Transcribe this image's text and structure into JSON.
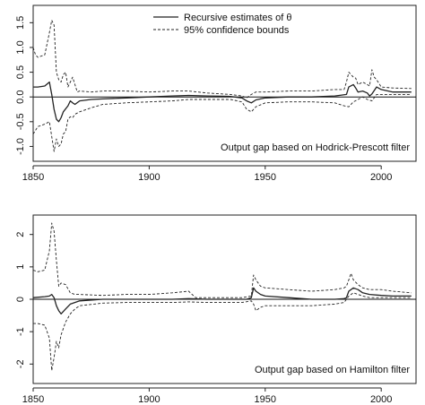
{
  "colors": {
    "line": "#222222",
    "frame": "#222222",
    "zero_line": "#111111",
    "background": "#ffffff"
  },
  "chart_data": [
    {
      "type": "line",
      "title": "",
      "xlabel": "",
      "ylabel": "",
      "annotation": "Output gap based on Hodrick-Prescott filter",
      "xlim": [
        1850,
        2015
      ],
      "ylim": [
        -1.3,
        1.85
      ],
      "x_ticks": [
        1850,
        1900,
        1950,
        2000
      ],
      "y_ticks": [
        -1.0,
        -0.5,
        0.0,
        0.5,
        1.0,
        1.5
      ],
      "y_tick_labels": [
        "-1.0",
        "-0.5",
        "0.0",
        "0.5",
        "1.0",
        "1.5"
      ],
      "hline": 0.0,
      "grid": false,
      "legend_position": "top-center",
      "legend": [
        {
          "label": "Recursive estimates of θ",
          "style": "solid"
        },
        {
          "label": "95% confidence bounds",
          "style": "dashed"
        }
      ],
      "series": [
        {
          "name": "Recursive estimates of θ",
          "style": "solid",
          "x": [
            1850,
            1852,
            1855,
            1857,
            1858,
            1859,
            1860,
            1861,
            1862,
            1863,
            1865,
            1866,
            1867,
            1868,
            1870,
            1875,
            1880,
            1890,
            1900,
            1910,
            1917,
            1925,
            1935,
            1940,
            1942,
            1944,
            1946,
            1950,
            1960,
            1970,
            1980,
            1985,
            1986,
            1988,
            1989,
            1990,
            1992,
            1994,
            1995,
            1996,
            1998,
            2000,
            2005,
            2013
          ],
          "y": [
            0.2,
            0.2,
            0.22,
            0.3,
            0.05,
            -0.25,
            -0.45,
            -0.5,
            -0.42,
            -0.3,
            -0.18,
            -0.08,
            -0.12,
            -0.15,
            -0.08,
            -0.05,
            -0.04,
            -0.02,
            0.0,
            0.02,
            0.03,
            0.02,
            0.01,
            -0.02,
            -0.08,
            -0.12,
            -0.06,
            -0.02,
            0.0,
            0.0,
            0.02,
            0.05,
            0.2,
            0.25,
            0.18,
            0.1,
            0.12,
            0.08,
            0.02,
            0.06,
            0.2,
            0.15,
            0.1,
            0.1
          ]
        },
        {
          "name": "Upper 95% bound",
          "style": "dashed",
          "x": [
            1850,
            1851,
            1852,
            1855,
            1857,
            1858,
            1859,
            1860,
            1861,
            1862,
            1863,
            1864,
            1865,
            1866,
            1867,
            1868,
            1869,
            1870,
            1875,
            1880,
            1890,
            1900,
            1910,
            1917,
            1925,
            1935,
            1940,
            1942,
            1944,
            1946,
            1950,
            1960,
            1970,
            1980,
            1984,
            1985,
            1986,
            1987,
            1988,
            1989,
            1990,
            1992,
            1994,
            1995,
            1996,
            1997,
            1998,
            2000,
            2005,
            2013
          ],
          "y": [
            1.0,
            0.85,
            0.8,
            0.85,
            1.3,
            1.55,
            1.45,
            0.5,
            0.35,
            0.3,
            0.45,
            0.5,
            0.2,
            0.3,
            0.4,
            0.25,
            0.1,
            0.12,
            0.1,
            0.12,
            0.12,
            0.1,
            0.12,
            0.12,
            0.08,
            0.05,
            0.02,
            -0.02,
            0.05,
            0.1,
            0.1,
            0.12,
            0.12,
            0.15,
            0.15,
            0.3,
            0.5,
            0.45,
            0.4,
            0.38,
            0.25,
            0.3,
            0.25,
            0.22,
            0.55,
            0.4,
            0.35,
            0.2,
            0.18,
            0.17
          ]
        },
        {
          "name": "Lower 95% bound",
          "style": "dashed",
          "x": [
            1850,
            1852,
            1855,
            1857,
            1858,
            1859,
            1860,
            1861,
            1862,
            1863,
            1864,
            1865,
            1866,
            1867,
            1868,
            1870,
            1875,
            1880,
            1890,
            1900,
            1910,
            1917,
            1925,
            1935,
            1940,
            1942,
            1944,
            1946,
            1950,
            1960,
            1970,
            1980,
            1984,
            1986,
            1988,
            1990,
            1992,
            1994,
            1996,
            1998,
            2000,
            2005,
            2013
          ],
          "y": [
            -0.75,
            -0.6,
            -0.55,
            -0.5,
            -0.8,
            -1.1,
            -0.85,
            -1.0,
            -0.95,
            -0.75,
            -0.7,
            -0.45,
            -0.4,
            -0.42,
            -0.35,
            -0.3,
            -0.22,
            -0.15,
            -0.12,
            -0.1,
            -0.08,
            -0.05,
            -0.05,
            -0.05,
            -0.1,
            -0.25,
            -0.3,
            -0.2,
            -0.12,
            -0.1,
            -0.1,
            -0.12,
            -0.18,
            -0.2,
            -0.1,
            -0.05,
            0.0,
            -0.05,
            -0.08,
            0.05,
            0.05,
            0.05,
            0.05
          ]
        }
      ]
    },
    {
      "type": "line",
      "title": "",
      "xlabel": "",
      "ylabel": "",
      "annotation": "Output gap based on Hamilton filter",
      "xlim": [
        1850,
        2015
      ],
      "ylim": [
        -2.6,
        2.6
      ],
      "x_ticks": [
        1850,
        1900,
        1950,
        2000
      ],
      "y_ticks": [
        -2,
        -1,
        0,
        1,
        2
      ],
      "y_tick_labels": [
        "-2",
        "-1",
        "0",
        "1",
        "2"
      ],
      "hline": 0,
      "grid": false,
      "series": [
        {
          "name": "Recursive estimates of θ",
          "style": "solid",
          "x": [
            1850,
            1855,
            1857,
            1858,
            1859,
            1860,
            1861,
            1862,
            1864,
            1866,
            1870,
            1880,
            1890,
            1900,
            1910,
            1917,
            1925,
            1935,
            1942,
            1944,
            1945,
            1946,
            1948,
            1950,
            1960,
            1970,
            1980,
            1984,
            1985,
            1986,
            1988,
            1990,
            1992,
            1995,
            2000,
            2005,
            2013
          ],
          "y": [
            0.05,
            0.08,
            0.1,
            0.15,
            0.05,
            -0.2,
            -0.35,
            -0.45,
            -0.3,
            -0.15,
            -0.05,
            0.0,
            0.0,
            0.0,
            0.0,
            0.02,
            0.0,
            0.0,
            0.0,
            0.05,
            0.35,
            0.25,
            0.15,
            0.1,
            0.05,
            0.0,
            0.0,
            0.02,
            0.05,
            0.25,
            0.35,
            0.3,
            0.2,
            0.15,
            0.12,
            0.1,
            0.1
          ]
        },
        {
          "name": "Upper 95% bound",
          "style": "dashed",
          "x": [
            1850,
            1852,
            1855,
            1857,
            1858,
            1859,
            1860,
            1861,
            1862,
            1864,
            1866,
            1868,
            1870,
            1880,
            1890,
            1900,
            1910,
            1917,
            1920,
            1930,
            1940,
            1944,
            1945,
            1946,
            1948,
            1950,
            1960,
            1970,
            1980,
            1984,
            1985,
            1986,
            1987,
            1988,
            1990,
            1992,
            1995,
            2000,
            2005,
            2013
          ],
          "y": [
            0.9,
            0.85,
            0.9,
            1.5,
            2.35,
            2.1,
            1.2,
            0.4,
            0.5,
            0.45,
            0.2,
            0.15,
            0.15,
            0.12,
            0.15,
            0.15,
            0.2,
            0.25,
            0.05,
            0.05,
            0.05,
            0.1,
            0.75,
            0.6,
            0.4,
            0.35,
            0.3,
            0.25,
            0.3,
            0.35,
            0.4,
            0.6,
            0.8,
            0.6,
            0.45,
            0.35,
            0.3,
            0.3,
            0.25,
            0.2
          ]
        },
        {
          "name": "Lower 95% bound",
          "style": "dashed",
          "x": [
            1850,
            1852,
            1855,
            1857,
            1858,
            1859,
            1860,
            1861,
            1862,
            1864,
            1866,
            1868,
            1870,
            1880,
            1890,
            1900,
            1910,
            1917,
            1925,
            1935,
            1940,
            1944,
            1945,
            1946,
            1948,
            1950,
            1960,
            1970,
            1980,
            1984,
            1986,
            1988,
            1990,
            1992,
            1995,
            2000,
            2005,
            2013
          ],
          "y": [
            -0.75,
            -0.75,
            -0.8,
            -1.2,
            -2.2,
            -1.8,
            -1.3,
            -1.5,
            -1.1,
            -0.7,
            -0.45,
            -0.3,
            -0.2,
            -0.12,
            -0.1,
            -0.1,
            -0.1,
            -0.08,
            -0.1,
            -0.1,
            -0.1,
            -0.05,
            -0.15,
            -0.35,
            -0.25,
            -0.2,
            -0.2,
            -0.2,
            -0.15,
            -0.1,
            0.1,
            0.2,
            0.15,
            0.1,
            0.05,
            0.05,
            0.05,
            0.05
          ]
        }
      ]
    }
  ]
}
